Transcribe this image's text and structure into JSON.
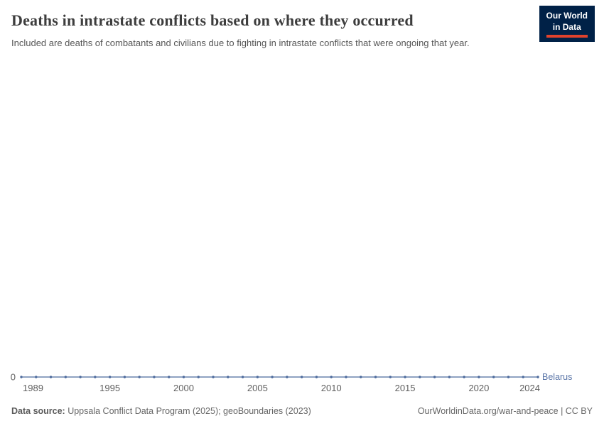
{
  "header": {
    "logo": {
      "line1": "Our World",
      "line2": "in Data"
    }
  },
  "chart_data": {
    "type": "line",
    "title": "Deaths in intrastate conflicts based on where they occurred",
    "subtitle": "Included are deaths of combatants and civilians due to fighting in intrastate conflicts that were ongoing that year.",
    "x": [
      1989,
      1990,
      1991,
      1992,
      1993,
      1994,
      1995,
      1996,
      1997,
      1998,
      1999,
      2000,
      2001,
      2002,
      2003,
      2004,
      2005,
      2006,
      2007,
      2008,
      2009,
      2010,
      2011,
      2012,
      2013,
      2014,
      2015,
      2016,
      2017,
      2018,
      2019,
      2020,
      2021,
      2022,
      2023,
      2024
    ],
    "series": [
      {
        "name": "Belarus",
        "values": [
          0,
          0,
          0,
          0,
          0,
          0,
          0,
          0,
          0,
          0,
          0,
          0,
          0,
          0,
          0,
          0,
          0,
          0,
          0,
          0,
          0,
          0,
          0,
          0,
          0,
          0,
          0,
          0,
          0,
          0,
          0,
          0,
          0,
          0,
          0,
          0
        ]
      }
    ],
    "x_ticks": [
      1989,
      1995,
      2000,
      2005,
      2010,
      2015,
      2020,
      2024
    ],
    "y_ticks": [
      0
    ],
    "xlabel": "",
    "ylabel": "",
    "ylim": [
      0,
      1
    ],
    "grid": false,
    "legend_position": "end-of-line"
  },
  "footer": {
    "datasource_label": "Data source:",
    "datasource_value": " Uppsala Conflict Data Program (2025); geoBoundaries (2023)",
    "credit": "OurWorldinData.org/war-and-peace | CC BY"
  },
  "colors": {
    "line": "#4C6A9C",
    "series_label": "#5B76A8",
    "axis_text": "#606060",
    "logo_bg": "#002147",
    "logo_red": "#E0422D"
  }
}
